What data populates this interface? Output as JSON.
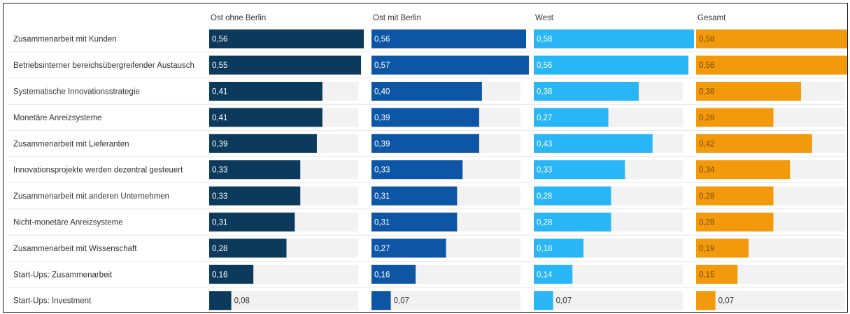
{
  "chart_data": {
    "type": "bar",
    "orientation": "horizontal",
    "layout": "small-multiples",
    "value_labels": "inside-bar",
    "xlim": [
      0,
      0.6
    ],
    "grid": false,
    "legend": "none",
    "categories": [
      "Zusammenarbeit mit Kunden",
      "Betriebsinterner bereichsübergreifender Austausch",
      "Systematische Innovationsstrategie",
      "Monetäre Anreizsysteme",
      "Zusammenarbeit mit Lieferanten",
      "Innovationsprojekte werden dezentral gesteuert",
      "Zusammenarbeit mit anderen Unternehmen",
      "Nicht-monetäre Anreizsysteme",
      "Zusammenarbeit mit Wissenschaft",
      "Start-Ups: Zusammenarbeit",
      "Start-Ups: Investment"
    ],
    "series": [
      {
        "name": "Ost ohne Berlin",
        "color": "#0b3a5c",
        "values": [
          0.56,
          0.55,
          0.41,
          0.41,
          0.39,
          0.33,
          0.33,
          0.31,
          0.28,
          0.16,
          0.08
        ],
        "labels": [
          "0,56",
          "0,55",
          "0,41",
          "0,41",
          "0,39",
          "0,33",
          "0,33",
          "0,31",
          "0,28",
          "0,16",
          "0,08"
        ]
      },
      {
        "name": "Ost mit Berlin",
        "color": "#0d56a6",
        "values": [
          0.56,
          0.57,
          0.4,
          0.39,
          0.39,
          0.33,
          0.31,
          0.31,
          0.27,
          0.16,
          0.07
        ],
        "labels": [
          "0,56",
          "0,57",
          "0,40",
          "0,39",
          "0,39",
          "0,33",
          "0,31",
          "0,31",
          "0,27",
          "0,16",
          "0,07"
        ]
      },
      {
        "name": "West",
        "color": "#29b6f6",
        "values": [
          0.58,
          0.56,
          0.38,
          0.27,
          0.43,
          0.33,
          0.28,
          0.28,
          0.18,
          0.14,
          0.07
        ],
        "labels": [
          "0,58",
          "0,56",
          "0,38",
          "0,27",
          "0,43",
          "0,33",
          "0,28",
          "0,28",
          "0,18",
          "0,14",
          "0,07"
        ]
      },
      {
        "name": "Gesamt",
        "color": "#f29a0c",
        "values": [
          0.58,
          0.56,
          0.38,
          0.28,
          0.42,
          0.34,
          0.28,
          0.28,
          0.19,
          0.15,
          0.07
        ],
        "labels": [
          "0,58",
          "0,56",
          "0,38",
          "0,28",
          "0,42",
          "0,34",
          "0,28",
          "0,28",
          "0,19",
          "0,15",
          "0,07"
        ]
      }
    ]
  },
  "colors": {
    "track": "#f2f2f2",
    "separator": "#e6e6e6",
    "text": "#333333",
    "label_on_dark": "#ffffff",
    "label_on_light": "#7a4a00"
  }
}
